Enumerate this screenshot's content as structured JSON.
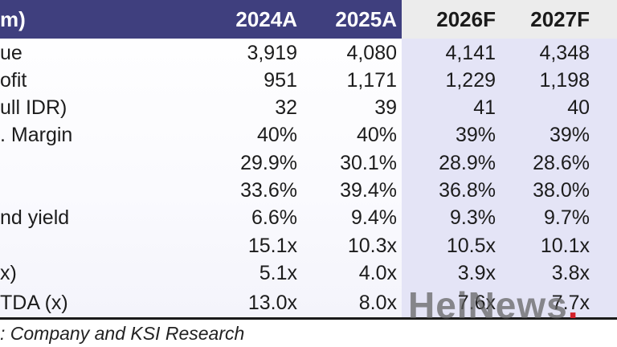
{
  "table": {
    "header": {
      "label": "m)",
      "cols": [
        "2024A",
        "2025A",
        "2026F",
        "2027F"
      ]
    },
    "rows": [
      {
        "label": "ue",
        "values": [
          "3,919",
          "4,080",
          "4,141",
          "4,348"
        ]
      },
      {
        "label": "ofit",
        "values": [
          "951",
          "1,171",
          "1,229",
          "1,198"
        ]
      },
      {
        "label": "ull IDR)",
        "values": [
          "32",
          "39",
          "41",
          "40"
        ]
      },
      {
        "label": ". Margin",
        "values": [
          "40%",
          "40%",
          "39%",
          "39%"
        ]
      },
      {
        "label": "",
        "values": [
          "29.9%",
          "30.1%",
          "28.9%",
          "28.6%"
        ]
      },
      {
        "label": "",
        "values": [
          "33.6%",
          "39.4%",
          "36.8%",
          "38.0%"
        ]
      },
      {
        "label": "nd yield",
        "values": [
          "6.6%",
          "9.4%",
          "9.3%",
          "9.7%"
        ]
      },
      {
        "label": "",
        "values": [
          "15.1x",
          "10.3x",
          "10.5x",
          "10.1x"
        ]
      },
      {
        "label": "x)",
        "values": [
          "5.1x",
          "4.0x",
          "3.9x",
          "3.8x"
        ]
      },
      {
        "label": "TDA (x)",
        "values": [
          "13.0x",
          "8.0x",
          "7.6x",
          "7.7x"
        ]
      }
    ]
  },
  "source": ": Company and KSI Research",
  "watermark": {
    "text": "HeiNews",
    "dot": "."
  },
  "colors": {
    "header_actual": "#3f3f7e",
    "header_forecast": "#ececec",
    "forecast_bg": "#e4e4f6",
    "watermark_dot": "#d3202a"
  }
}
